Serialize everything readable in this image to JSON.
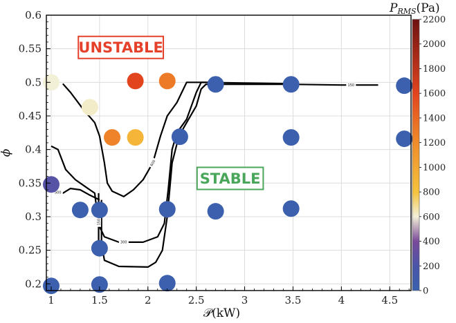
{
  "chart_data": {
    "type": "scatter",
    "xlabel": "𝒫(kW)",
    "ylabel": "ϕ",
    "xlim": [
      0.95,
      4.72
    ],
    "ylim": [
      0.19,
      0.6
    ],
    "x_ticks": [
      1,
      1.5,
      2,
      2.5,
      3,
      3.5,
      4,
      4.5
    ],
    "x_tick_labels": [
      "1",
      "1.5",
      "2",
      "2.5",
      "3",
      "3.5",
      "4",
      "4.5"
    ],
    "y_ticks": [
      0.2,
      0.25,
      0.3,
      0.35,
      0.4,
      0.45,
      0.5,
      0.55,
      0.6
    ],
    "y_tick_labels": [
      "0.2",
      "0.25",
      "0.3",
      "0.35",
      "0.4",
      "0.45",
      "0.5",
      "0.55",
      "0.6"
    ],
    "grid": true,
    "colorbar": {
      "label": "P_RMS(Pa)",
      "label_main": "P",
      "label_sub": "RMS",
      "label_unit": "(Pa)",
      "range": [
        0,
        2200
      ],
      "ticks": [
        0,
        200,
        400,
        600,
        800,
        1000,
        1200,
        1400,
        1600,
        1800,
        2000,
        2200
      ],
      "stops": [
        {
          "v": 0,
          "color": "#3a62ae"
        },
        {
          "v": 200,
          "color": "#4a54a8"
        },
        {
          "v": 400,
          "color": "#7a4a9a"
        },
        {
          "v": 600,
          "color": "#f3f0d8"
        },
        {
          "v": 800,
          "color": "#f5c33c"
        },
        {
          "v": 1200,
          "color": "#f08c2a"
        },
        {
          "v": 1600,
          "color": "#e2441e"
        },
        {
          "v": 2200,
          "color": "#6e1212"
        }
      ]
    },
    "points": [
      {
        "x": 1.0,
        "y": 0.5,
        "p": 600
      },
      {
        "x": 1.4,
        "y": 0.463,
        "p": 620
      },
      {
        "x": 1.87,
        "y": 0.502,
        "p": 1600
      },
      {
        "x": 2.2,
        "y": 0.502,
        "p": 1300
      },
      {
        "x": 1.63,
        "y": 0.418,
        "p": 1250
      },
      {
        "x": 1.87,
        "y": 0.418,
        "p": 900
      },
      {
        "x": 1.0,
        "y": 0.348,
        "p": 250
      },
      {
        "x": 1.0,
        "y": 0.197,
        "p": 30
      },
      {
        "x": 1.3,
        "y": 0.31,
        "p": 30
      },
      {
        "x": 1.5,
        "y": 0.31,
        "p": 30
      },
      {
        "x": 1.5,
        "y": 0.253,
        "p": 30
      },
      {
        "x": 1.5,
        "y": 0.199,
        "p": 30
      },
      {
        "x": 2.2,
        "y": 0.311,
        "p": 30
      },
      {
        "x": 2.2,
        "y": 0.201,
        "p": 30
      },
      {
        "x": 2.33,
        "y": 0.419,
        "p": 30
      },
      {
        "x": 2.7,
        "y": 0.497,
        "p": 30
      },
      {
        "x": 2.7,
        "y": 0.308,
        "p": 30
      },
      {
        "x": 3.48,
        "y": 0.497,
        "p": 30
      },
      {
        "x": 3.48,
        "y": 0.418,
        "p": 30
      },
      {
        "x": 3.48,
        "y": 0.312,
        "p": 30
      },
      {
        "x": 4.65,
        "y": 0.495,
        "p": 30
      },
      {
        "x": 4.65,
        "y": 0.416,
        "p": 30
      }
    ],
    "contours": [
      {
        "level": "150",
        "points": [
          [
            1.52,
            0.325
          ],
          [
            1.52,
            0.26
          ],
          [
            1.55,
            0.235
          ],
          [
            1.7,
            0.226
          ],
          [
            2.0,
            0.225
          ],
          [
            2.08,
            0.232
          ],
          [
            2.15,
            0.25
          ],
          [
            2.2,
            0.3
          ],
          [
            2.25,
            0.38
          ],
          [
            2.32,
            0.42
          ],
          [
            2.4,
            0.44
          ],
          [
            2.5,
            0.465
          ],
          [
            2.55,
            0.49
          ],
          [
            2.6,
            0.497
          ],
          [
            3.0,
            0.497
          ],
          [
            3.5,
            0.497
          ],
          [
            4.0,
            0.496
          ],
          [
            4.38,
            0.496
          ]
        ],
        "label_at": [
          4.1,
          0.496
        ],
        "label_angle": 0
      },
      {
        "level": "300",
        "points": [
          [
            1.0,
            0.405
          ],
          [
            1.07,
            0.4
          ],
          [
            1.15,
            0.37
          ],
          [
            1.25,
            0.355
          ],
          [
            1.35,
            0.345
          ],
          [
            1.45,
            0.335
          ],
          [
            1.48,
            0.3
          ],
          [
            1.5,
            0.285
          ],
          [
            1.55,
            0.27
          ],
          [
            1.7,
            0.262
          ],
          [
            1.95,
            0.262
          ],
          [
            2.1,
            0.27
          ],
          [
            2.17,
            0.29
          ],
          [
            2.21,
            0.34
          ],
          [
            2.25,
            0.4
          ],
          [
            2.3,
            0.425
          ],
          [
            2.4,
            0.445
          ],
          [
            2.45,
            0.465
          ],
          [
            2.5,
            0.485
          ],
          [
            2.55,
            0.5
          ],
          [
            3.0,
            0.499
          ],
          [
            3.5,
            0.498
          ]
        ],
        "label_at": [
          1.75,
          0.262
        ],
        "label_angle": 0
      },
      {
        "level": "600",
        "points": [
          [
            1.12,
            0.498
          ],
          [
            1.2,
            0.485
          ],
          [
            1.33,
            0.46
          ],
          [
            1.45,
            0.44
          ],
          [
            1.5,
            0.42
          ],
          [
            1.55,
            0.38
          ],
          [
            1.58,
            0.35
          ],
          [
            1.63,
            0.338
          ],
          [
            1.75,
            0.33
          ],
          [
            1.85,
            0.34
          ],
          [
            1.95,
            0.355
          ],
          [
            2.05,
            0.38
          ],
          [
            2.13,
            0.42
          ],
          [
            2.2,
            0.45
          ],
          [
            2.3,
            0.47
          ],
          [
            2.4,
            0.5
          ],
          [
            2.6,
            0.5
          ],
          [
            2.75,
            0.5
          ]
        ],
        "label_at": [
          2.05,
          0.38
        ],
        "label_angle": -60
      },
      {
        "level": "500",
        "points": [
          [
            1.0,
            0.352
          ],
          [
            1.05,
            0.338
          ],
          [
            1.12,
            0.335
          ],
          [
            1.2,
            0.342
          ],
          [
            1.3,
            0.34
          ],
          [
            1.4,
            0.332
          ],
          [
            1.5,
            0.325
          ]
        ],
        "label_at": [
          1.07,
          0.336
        ],
        "label_angle": 0
      },
      {
        "level": "150",
        "points": [
          [
            1.49,
            0.335
          ],
          [
            1.49,
            0.25
          ]
        ],
        "label_at": [
          1.49,
          0.292
        ],
        "label_angle": -90
      }
    ],
    "annotations": [
      {
        "text": "UNSTABLE",
        "x": 1.72,
        "y": 0.552,
        "color": "#e5402a"
      },
      {
        "text": "STABLE",
        "x": 2.85,
        "y": 0.357,
        "color": "#4aa65a"
      }
    ]
  }
}
